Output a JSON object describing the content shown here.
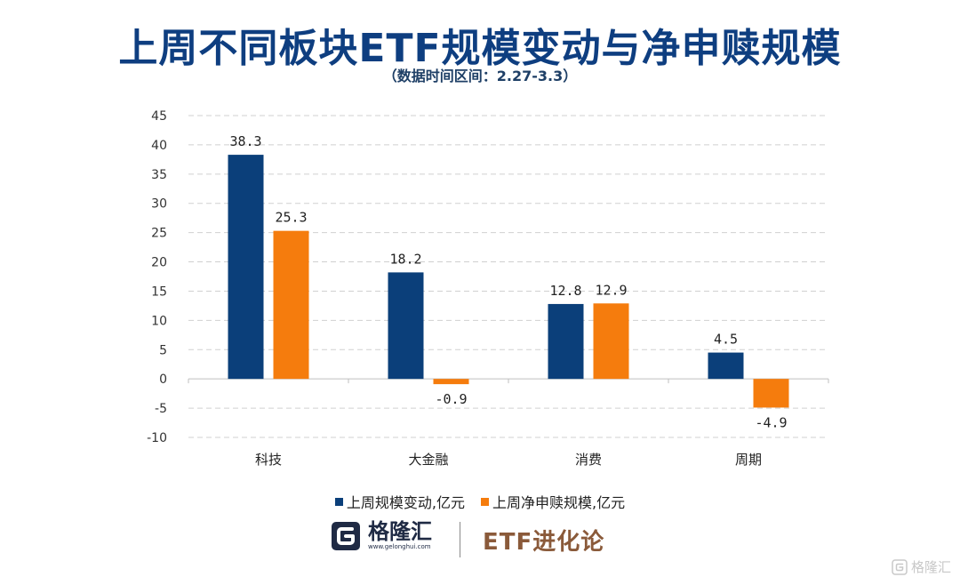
{
  "title": "上周不同板块ETF规模变动与净申赎规模",
  "subtitle": "（数据时间区间：2.27-3.3）",
  "chart_data": {
    "type": "bar",
    "categories": [
      "科技",
      "大金融",
      "消费",
      "周期"
    ],
    "series": [
      {
        "name": "上周规模变动,亿元",
        "color": "#0b3f7a",
        "values": [
          38.3,
          18.2,
          12.8,
          4.5
        ],
        "labels": [
          "38.3",
          "18.2",
          "12.8",
          "4.5"
        ]
      },
      {
        "name": "上周净申赎规模,亿元",
        "color": "#f57c0d",
        "values": [
          25.3,
          -0.9,
          12.9,
          -4.9
        ],
        "labels": [
          "25.3",
          "-0.9",
          "12.9",
          "-4.9"
        ]
      }
    ],
    "ylim": [
      -10,
      45
    ],
    "yticks": [
      -10,
      -5,
      0,
      5,
      10,
      15,
      20,
      25,
      30,
      35,
      40,
      45
    ],
    "ytick_labels": [
      "-10",
      "-5",
      "0",
      "5",
      "10",
      "15",
      "20",
      "25",
      "30",
      "35",
      "40",
      "45"
    ],
    "grid": true,
    "legend_position": "bottom"
  },
  "footer": {
    "brand_name": "格隆汇",
    "brand_url": "www.gelonghui.com",
    "series_name": "ETF进化论"
  },
  "watermark": {
    "text": "格隆汇"
  },
  "colors": {
    "title": "#0e3e80",
    "grid": "#d0d0d0",
    "axis_text": "#333333"
  }
}
